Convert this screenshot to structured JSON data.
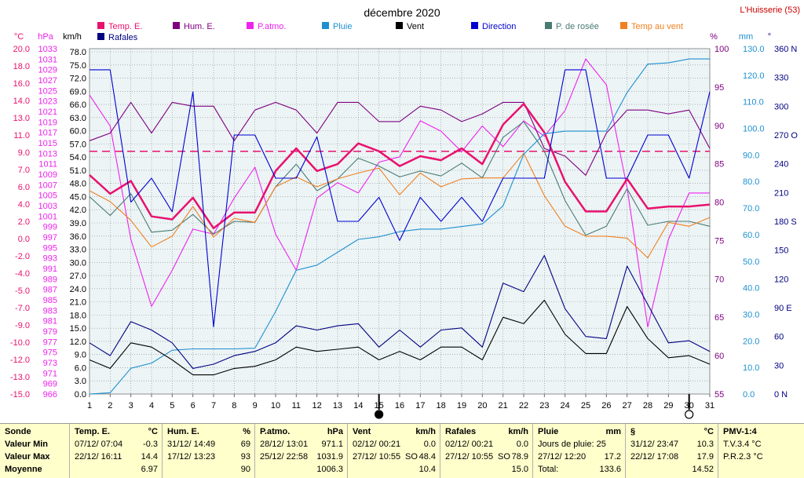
{
  "title": "décembre 2020",
  "station": "L'Huisserie (53)",
  "axis_units": {
    "temp": "°C",
    "press": "hPa",
    "wind": "km/h",
    "hum": "%",
    "rain": "mm",
    "dir": "°"
  },
  "legend": [
    {
      "label": "Temp. E.",
      "color": "#e8126e"
    },
    {
      "label": "Hum. E.",
      "color": "#800080"
    },
    {
      "label": "P.atmo.",
      "color": "#ee22ee"
    },
    {
      "label": "Pluie",
      "color": "#1e90d0"
    },
    {
      "label": "Vent",
      "color": "#000000"
    },
    {
      "label": "Direction",
      "color": "#0000d0"
    },
    {
      "label": "P. de rosée",
      "color": "#4a7a74"
    },
    {
      "label": "Temp au vent",
      "color": "#f08020"
    },
    {
      "label": "Rafales",
      "color": "#000080"
    }
  ],
  "chart_data": {
    "type": "line",
    "x": [
      1,
      2,
      3,
      4,
      5,
      6,
      7,
      8,
      9,
      10,
      11,
      12,
      13,
      14,
      15,
      16,
      17,
      18,
      19,
      20,
      21,
      22,
      23,
      24,
      25,
      26,
      27,
      28,
      29,
      30,
      31
    ],
    "xlim": [
      1,
      31
    ],
    "moon_markers": [
      {
        "day": 15,
        "phase": "new"
      },
      {
        "day": 30,
        "phase": "full"
      }
    ],
    "axes": {
      "temp": {
        "range": [
          -15,
          20
        ],
        "ticks": [
          "20.0",
          "18.0",
          "16.0",
          "14.0",
          "13.0",
          "11.0",
          "9.0",
          "7.0",
          "6.0",
          "4.0",
          "2.0",
          "0.0",
          "-2.0",
          "-4.0",
          "-5.0",
          "-7.0",
          "-9.0",
          "-10.0",
          "-12.0",
          "-13.0",
          "-15.0"
        ],
        "color": "#e8126e"
      },
      "press": {
        "range": [
          966,
          1033
        ],
        "ticks": [
          "1033",
          "1031",
          "1029",
          "1027",
          "1025",
          "1023",
          "1021",
          "1019",
          "1017",
          "1015",
          "1013",
          "1011",
          "1009",
          "1007",
          "1005",
          "1003",
          "1001",
          "999",
          "997",
          "995",
          "993",
          "991",
          "989",
          "987",
          "985",
          "983",
          "981",
          "979",
          "977",
          "975",
          "973",
          "971",
          "969",
          "966"
        ],
        "color": "#ee22ee"
      },
      "wind": {
        "range": [
          0,
          81
        ],
        "ticks": [
          "78.0",
          "75.0",
          "72.0",
          "69.0",
          "66.0",
          "63.0",
          "60.0",
          "57.0",
          "54.0",
          "51.0",
          "48.0",
          "45.0",
          "42.0",
          "39.0",
          "36.0",
          "33.0",
          "30.0",
          "27.0",
          "24.0",
          "21.0",
          "18.0",
          "15.0",
          "12.0",
          "9.0",
          "6.0",
          "3.0",
          "0.0"
        ],
        "color": "#000000"
      },
      "hum": {
        "range": [
          55,
          100
        ],
        "ticks": [
          "100",
          "95",
          "90",
          "85",
          "80",
          "75",
          "70",
          "65",
          "60",
          "55"
        ],
        "color": "#800080"
      },
      "rain": {
        "range": [
          0,
          134
        ],
        "ticks": [
          "130.0",
          "120.0",
          "110.0",
          "100.0",
          "90.0",
          "80.0",
          "70.0",
          "60.0",
          "50.0",
          "40.0",
          "30.0",
          "20.0",
          "10.0",
          "0.0"
        ],
        "color": "#1e90d0"
      },
      "dir": {
        "range": [
          0,
          360
        ],
        "ticks": [
          "360 N",
          "330",
          "300",
          "270 O",
          "240",
          "210",
          "180 S",
          "150",
          "120",
          "90 E",
          "60",
          "30",
          "0 N"
        ],
        "color": "#000080"
      }
    },
    "reference_line": {
      "axis": "temp",
      "value": 9.6,
      "color": "#e8126e"
    },
    "series": [
      {
        "name": "P.atmo.",
        "axis": "press",
        "color": "#ee22ee",
        "values": [
          1024,
          1018,
          996,
          983,
          990,
          998,
          997,
          1004,
          1010,
          997,
          990,
          1004,
          1007,
          1005,
          1011,
          1012,
          1019,
          1017,
          1013,
          1018,
          1014,
          1019,
          1016,
          1021,
          1031,
          1026,
          1006,
          979,
          996,
          1005,
          1005
        ]
      },
      {
        "name": "Hum. E.",
        "axis": "hum",
        "color": "#800080",
        "values": [
          88,
          89,
          93,
          89,
          93,
          92.5,
          92.5,
          88,
          92,
          93,
          92,
          89,
          93,
          93,
          90.5,
          90.5,
          92.5,
          92,
          90.5,
          91.5,
          93,
          93,
          87,
          86,
          83.5,
          89,
          92,
          92,
          91.5,
          92,
          87
        ]
      },
      {
        "name": "Temp. E.",
        "axis": "temp",
        "color": "#e8126e",
        "values": [
          7.2,
          5.3,
          6.6,
          3.0,
          2.7,
          4.9,
          1.8,
          3.4,
          3.4,
          7.6,
          9.9,
          7.6,
          8.3,
          10.4,
          9.6,
          8.1,
          9.1,
          8.7,
          9.9,
          8.3,
          12.3,
          14.4,
          11.5,
          6.5,
          3.5,
          3.5,
          6.8,
          3.8,
          4.0,
          4.0,
          4.2
        ]
      },
      {
        "name": "P. de rosée",
        "axis": "temp",
        "color": "#4a7a74",
        "values": [
          5.0,
          3.1,
          5.3,
          1.4,
          1.6,
          3.2,
          1.2,
          2.5,
          2.4,
          6.0,
          8.3,
          5.6,
          6.8,
          8.9,
          8.1,
          7.0,
          7.6,
          7.1,
          8.4,
          6.9,
          11.0,
          12.6,
          9.6,
          4.6,
          1.1,
          2.0,
          5.8,
          2.1,
          2.5,
          2.5,
          2.0
        ]
      },
      {
        "name": "Temp au vent",
        "axis": "temp",
        "color": "#f08020",
        "values": [
          5.6,
          4.5,
          2.6,
          -0.1,
          1.0,
          4.0,
          0.9,
          2.8,
          2.4,
          6.0,
          7.0,
          6.0,
          6.8,
          7.4,
          7.9,
          5.2,
          7.4,
          6.0,
          6.8,
          6.9,
          6.9,
          9.4,
          5.1,
          2.0,
          1.0,
          1.0,
          0.8,
          -1.2,
          2.4,
          2.0,
          2.9
        ]
      },
      {
        "name": "Pluie",
        "axis": "rain",
        "color": "#1e90d0",
        "values": [
          0,
          0.5,
          10,
          12,
          17,
          17.5,
          17.5,
          17.5,
          17.8,
          32,
          48,
          50,
          55,
          60,
          61,
          63,
          64,
          64,
          65,
          66,
          73,
          93,
          101,
          102,
          102,
          102,
          117,
          128,
          128.5,
          130,
          130
        ]
      },
      {
        "name": "Direction",
        "axis": "dir",
        "color": "#0000d0",
        "values": [
          338,
          338,
          200,
          225,
          190,
          315,
          70,
          270,
          270,
          225,
          225,
          268,
          180,
          180,
          205,
          160,
          205,
          180,
          205,
          180,
          225,
          225,
          225,
          338,
          338,
          225,
          225,
          270,
          270,
          225,
          315
        ]
      },
      {
        "name": "Rafales",
        "axis": "wind",
        "color": "#000080",
        "values": [
          12,
          9,
          17,
          15,
          12,
          6,
          7,
          9,
          10,
          12,
          16,
          15,
          16,
          16.5,
          11,
          15,
          11,
          15,
          15.5,
          11,
          26,
          24,
          32.5,
          20,
          13.5,
          13,
          30,
          21,
          12,
          12.5,
          10
        ]
      },
      {
        "name": "Vent",
        "axis": "wind",
        "color": "#000000",
        "values": [
          8,
          6,
          12,
          11,
          8,
          4.5,
          4.5,
          6,
          6.5,
          8,
          11,
          10,
          10.5,
          11,
          8,
          10,
          8,
          11,
          11,
          8,
          18,
          16.5,
          22,
          14,
          9.5,
          9.5,
          20.5,
          13,
          8.5,
          9,
          7
        ]
      }
    ]
  },
  "stats": {
    "labels": {
      "title": "Sonde",
      "min": "Valeur Min",
      "max": "Valeur Max",
      "avg": "Moyenne"
    },
    "temp": {
      "head": "Temp. E.",
      "unit": "°C",
      "min_date": "07/12/  07:04",
      "min_val": "-0.3",
      "max_date": "22/12/  16:11",
      "max_val": "14.4",
      "avg": "6.97"
    },
    "hum": {
      "head": "Hum. E.",
      "unit": "%",
      "min_date": "31/12/  14:49",
      "min_val": "69",
      "max_date": "17/12/  13:23",
      "max_val": "93",
      "avg": "90"
    },
    "press": {
      "head": "P.atmo.",
      "unit": "hPa",
      "min_date": "28/12/  13:01",
      "min_val": "971.1",
      "max_date": "25/12/  22:58",
      "max_val": "1031.9",
      "avg": "1006.3"
    },
    "wind": {
      "head": "Vent",
      "unit": "km/h",
      "min_date": "02/12/  00:21",
      "min_val": "0.0",
      "max_date": "27/12/  10:55",
      "max_dir": "SO",
      "max_val": "48.4",
      "avg": "10.4"
    },
    "gust": {
      "head": "Rafales",
      "unit": "km/h",
      "min_date": "02/12/  00:21",
      "min_val": "0.0",
      "max_date": "27/12/  10:55",
      "max_dir": "SO",
      "max_val": "78.9",
      "avg": "15.0"
    },
    "rain": {
      "head": "Pluie",
      "unit": "mm",
      "days_label": "Jours de pluie: 25",
      "max_date": "27/12/  12:20",
      "max_val": "17.2",
      "total_label": "Total:",
      "total_val": "133.6"
    },
    "misc": {
      "head": "§",
      "unit": "°C",
      "min_date": "31/12/  23:47",
      "min_val": "10.3",
      "max_date": "22/12/  17:08",
      "max_val": "17.9",
      "avg": "14.52"
    },
    "pmv": {
      "head": "PMV-1:4",
      "line1": "T.V.3.4 °C",
      "line2": "P.R.2.3 °C"
    }
  }
}
